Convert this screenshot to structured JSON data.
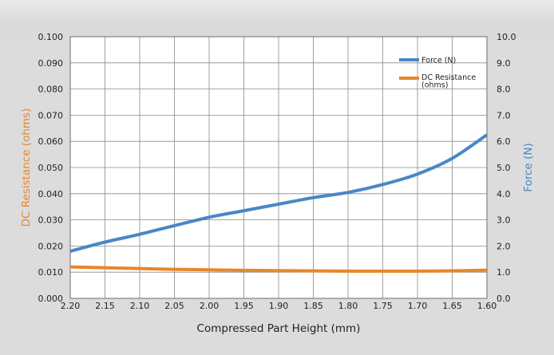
{
  "chart_data": {
    "type": "line",
    "title": "",
    "xlabel": "Compressed Part Height (mm)",
    "ylabel_left": "DC Resistance (ohms)",
    "ylabel_right": "Force (N)",
    "x_reversed": true,
    "xlim": [
      2.2,
      1.6
    ],
    "x_ticks": [
      "2.20",
      "2.15",
      "2.10",
      "2.05",
      "2.00",
      "1.95",
      "1.90",
      "1.85",
      "1.80",
      "1.75",
      "1.70",
      "1.65",
      "1.60"
    ],
    "ylim_left": [
      0,
      0.1
    ],
    "y_ticks_left": [
      "0.000",
      "0.010",
      "0.020",
      "0.030",
      "0.040",
      "0.050",
      "0.060",
      "0.070",
      "0.080",
      "0.090",
      "0.100"
    ],
    "ylim_right": [
      0,
      10
    ],
    "y_ticks_right": [
      "0.0",
      "1.0",
      "2.0",
      "3.0",
      "4.0",
      "5.0",
      "6.0",
      "7.0",
      "8.0",
      "9.0",
      "10.0"
    ],
    "grid": true,
    "legend_position": "top-right",
    "series": [
      {
        "name": "Force (N)",
        "axis": "right",
        "color": "#4a86c6",
        "x": [
          2.2,
          2.15,
          2.1,
          2.05,
          2.0,
          1.95,
          1.9,
          1.85,
          1.8,
          1.75,
          1.7,
          1.65,
          1.6
        ],
        "values": [
          1.8,
          2.15,
          2.45,
          2.78,
          3.1,
          3.35,
          3.6,
          3.85,
          4.05,
          4.35,
          4.75,
          5.35,
          6.25
        ]
      },
      {
        "name": "DC Resistance (ohms)",
        "axis": "left",
        "color": "#e8862c",
        "x": [
          2.2,
          2.15,
          2.1,
          2.05,
          2.0,
          1.95,
          1.9,
          1.85,
          1.8,
          1.75,
          1.7,
          1.65,
          1.6
        ],
        "values": [
          0.012,
          0.0117,
          0.0114,
          0.0111,
          0.0109,
          0.0107,
          0.0106,
          0.0105,
          0.0104,
          0.0104,
          0.0104,
          0.0105,
          0.0108
        ]
      }
    ]
  }
}
